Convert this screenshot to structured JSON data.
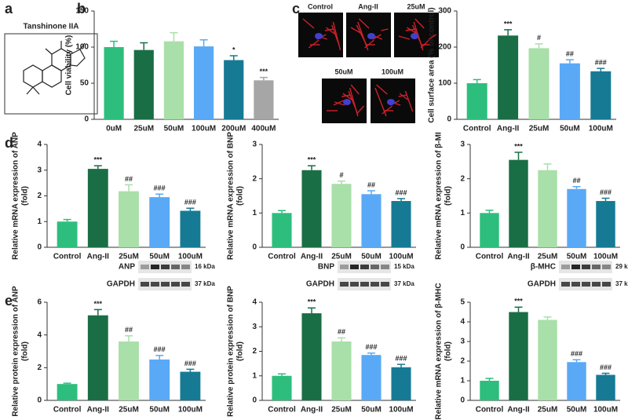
{
  "panel_labels": [
    "a",
    "b",
    "c",
    "d",
    "e"
  ],
  "structure": {
    "label": "Tanshinone IIA"
  },
  "micrographs": {
    "labels": [
      "Control",
      "Ang-II",
      "25uM",
      "50uM",
      "100uM"
    ]
  },
  "chart_data": [
    {
      "type": "bar",
      "ylabel": [
        "Cell viability (%)"
      ],
      "categories": [
        "0uM",
        "25uM",
        "50uM",
        "100uM",
        "200uM",
        "400uM"
      ],
      "values": [
        100,
        96,
        108,
        101,
        82,
        54
      ],
      "errors": [
        8,
        10,
        12,
        9,
        6,
        4
      ],
      "annotations": [
        null,
        null,
        null,
        null,
        "*",
        "***"
      ],
      "colors": [
        "#2dbe7e",
        "#1a6e45",
        "#a9dfa9",
        "#5aa9f6",
        "#167a94",
        "#a6a6a6"
      ],
      "ylim": [
        0,
        150
      ],
      "yticks": [
        0,
        50,
        100,
        150
      ]
    },
    {
      "type": "bar",
      "ylabel": [
        "Cell surface area (% of control)"
      ],
      "categories": [
        "Control",
        "Ang-II",
        "25uM",
        "50uM",
        "100uM"
      ],
      "values": [
        100,
        232,
        197,
        155,
        133
      ],
      "errors": [
        10,
        16,
        12,
        10,
        8
      ],
      "annotations": [
        null,
        "***",
        "#",
        "##",
        "###"
      ],
      "colors": [
        "#2dbe7e",
        "#1a6e45",
        "#a9dfa9",
        "#5aa9f6",
        "#167a94"
      ],
      "ylim": [
        0,
        300
      ],
      "yticks": [
        0,
        100,
        200,
        300
      ]
    },
    {
      "type": "bar",
      "ylabel": [
        "Relative mRNA expression of ANP",
        "(fold)"
      ],
      "categories": [
        "Control",
        "Ang-II",
        "25uM",
        "50uM",
        "100uM"
      ],
      "values": [
        1,
        3.05,
        2.18,
        1.95,
        1.42
      ],
      "errors": [
        0.08,
        0.12,
        0.25,
        0.12,
        0.1
      ],
      "annotations": [
        null,
        "***",
        "##",
        "###",
        "###"
      ],
      "colors": [
        "#2dbe7e",
        "#1a6e45",
        "#a9dfa9",
        "#5aa9f6",
        "#167a94"
      ],
      "ylim": [
        0,
        4
      ],
      "yticks": [
        0,
        1,
        2,
        3,
        4
      ]
    },
    {
      "type": "bar",
      "ylabel": [
        "Relative mRNA expression of BNP",
        "(fold)"
      ],
      "categories": [
        "Control",
        "Ang-II",
        "25uM",
        "50uM",
        "100uM"
      ],
      "values": [
        1,
        2.25,
        1.85,
        1.55,
        1.35
      ],
      "errors": [
        0.07,
        0.13,
        0.08,
        0.1,
        0.07
      ],
      "annotations": [
        null,
        "***",
        "#",
        "##",
        "###"
      ],
      "colors": [
        "#2dbe7e",
        "#1a6e45",
        "#a9dfa9",
        "#5aa9f6",
        "#167a94"
      ],
      "ylim": [
        0,
        3
      ],
      "yticks": [
        0,
        1,
        2,
        3
      ]
    },
    {
      "type": "bar",
      "ylabel": [
        "Relative mRNA expression of β-MI",
        "(fold)"
      ],
      "categories": [
        "Control",
        "Ang-II",
        "25uM",
        "50uM",
        "100uM"
      ],
      "values": [
        1,
        2.55,
        2.25,
        1.7,
        1.35
      ],
      "errors": [
        0.08,
        0.22,
        0.18,
        0.07,
        0.08
      ],
      "annotations": [
        null,
        "***",
        null,
        "##",
        "###"
      ],
      "colors": [
        "#2dbe7e",
        "#1a6e45",
        "#a9dfa9",
        "#5aa9f6",
        "#167a94"
      ],
      "ylim": [
        0,
        3
      ],
      "yticks": [
        0,
        1,
        2,
        3
      ]
    },
    {
      "type": "bar",
      "ylabel": [
        "Relative protein expression of ANP",
        "(fold)"
      ],
      "categories": [
        "Control",
        "Ang-II",
        "25uM",
        "50uM",
        "100uM"
      ],
      "values": [
        1,
        5.2,
        3.6,
        2.5,
        1.75
      ],
      "errors": [
        0.05,
        0.35,
        0.35,
        0.25,
        0.15
      ],
      "annotations": [
        null,
        "***",
        "##",
        "###",
        "###"
      ],
      "colors": [
        "#2dbe7e",
        "#1a6e45",
        "#a9dfa9",
        "#5aa9f6",
        "#167a94"
      ],
      "ylim": [
        0,
        6
      ],
      "yticks": [
        0,
        2,
        4,
        6
      ],
      "blot": {
        "rows": [
          "ANP",
          "GAPDH"
        ],
        "sizes": [
          "16 kDa",
          "37 kDa"
        ]
      }
    },
    {
      "type": "bar",
      "ylabel": [
        "Relative protein expression of BNP",
        "(fold)"
      ],
      "categories": [
        "Control",
        "Ang-II",
        "25uM",
        "50uM",
        "100uM"
      ],
      "values": [
        1,
        3.55,
        2.4,
        1.85,
        1.35
      ],
      "errors": [
        0.08,
        0.22,
        0.15,
        0.08,
        0.12
      ],
      "annotations": [
        null,
        "***",
        "##",
        "###",
        "###"
      ],
      "colors": [
        "#2dbe7e",
        "#1a6e45",
        "#a9dfa9",
        "#5aa9f6",
        "#167a94"
      ],
      "ylim": [
        0,
        4
      ],
      "yticks": [
        0,
        1,
        2,
        3,
        4
      ],
      "blot": {
        "rows": [
          "BNP",
          "GAPDH"
        ],
        "sizes": [
          "15 kDa",
          "37 kDa"
        ]
      }
    },
    {
      "type": "bar",
      "ylabel": [
        "Relative mRNA expression of β-MHC",
        "(fold)"
      ],
      "categories": [
        "Control",
        "Ang-II",
        "25uM",
        "50uM",
        "100uM"
      ],
      "values": [
        1,
        4.5,
        4.1,
        1.95,
        1.3
      ],
      "errors": [
        0.12,
        0.25,
        0.15,
        0.12,
        0.08
      ],
      "annotations": [
        null,
        "***",
        null,
        "###",
        "###"
      ],
      "colors": [
        "#2dbe7e",
        "#1a6e45",
        "#a9dfa9",
        "#5aa9f6",
        "#167a94"
      ],
      "ylim": [
        0,
        5
      ],
      "yticks": [
        0,
        1,
        2,
        3,
        4,
        5
      ],
      "blot": {
        "rows": [
          "β-MHC",
          "GAPDH"
        ],
        "sizes": [
          "29 kDa",
          "37 kDa"
        ]
      }
    }
  ]
}
